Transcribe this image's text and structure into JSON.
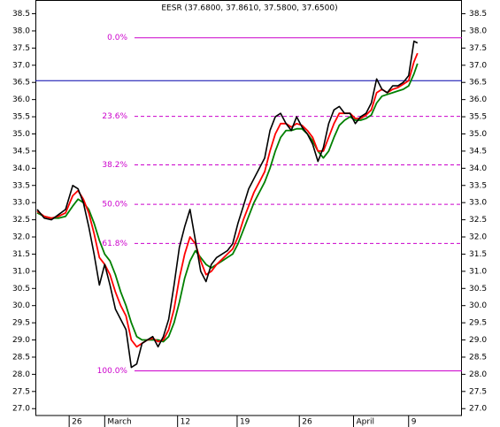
{
  "chart_data": {
    "type": "line",
    "title": "EESR (37.6800, 37.8610, 37.5800, 37.6500)",
    "x": [
      0.5,
      2.5,
      4.5,
      6.5,
      8.5,
      10.5,
      12,
      13.5,
      15,
      16.5,
      18,
      19.5,
      21,
      22.5,
      24,
      25.5,
      27,
      28.5,
      30,
      31.5,
      33,
      34.5,
      36,
      37.5,
      39,
      40.5,
      42,
      43.5,
      45,
      46.5,
      48,
      49.5,
      51,
      52.5,
      54,
      55.5,
      57,
      58.5,
      60,
      61.5,
      63,
      64.5,
      66,
      67.5,
      69,
      70.5,
      72,
      73.5,
      75,
      76.5,
      78,
      79.5,
      81,
      82.5,
      84,
      85.5,
      87,
      88.5,
      90,
      91.5,
      93,
      94.5,
      96,
      97.5,
      99,
      100.5,
      102,
      103.5,
      105,
      106.5,
      107.5
    ],
    "series": [
      {
        "color": "#000000",
        "values": [
          32.8,
          32.55,
          32.5,
          32.65,
          32.8,
          33.5,
          33.4,
          33.0,
          32.3,
          31.5,
          30.6,
          31.2,
          30.6,
          29.9,
          29.6,
          29.3,
          28.2,
          28.3,
          28.9,
          29.0,
          29.1,
          28.8,
          29.1,
          29.6,
          30.6,
          31.7,
          32.3,
          32.8,
          31.9,
          31.0,
          30.7,
          31.2,
          31.4,
          31.5,
          31.6,
          31.8,
          32.4,
          32.9,
          33.4,
          33.7,
          34.0,
          34.3,
          35.1,
          35.5,
          35.6,
          35.3,
          35.1,
          35.5,
          35.2,
          35.0,
          34.7,
          34.2,
          34.6,
          35.3,
          35.7,
          35.8,
          35.6,
          35.6,
          35.3,
          35.5,
          35.6,
          35.9,
          36.6,
          36.3,
          36.2,
          36.4,
          36.4,
          36.5,
          36.7,
          37.7,
          37.65
        ]
      },
      {
        "color": "#ff0000",
        "values": [
          32.75,
          32.6,
          32.55,
          32.6,
          32.7,
          33.2,
          33.35,
          33.1,
          32.7,
          32.1,
          31.4,
          31.2,
          30.9,
          30.4,
          30.0,
          29.7,
          29.0,
          28.8,
          28.9,
          29.0,
          29.05,
          28.95,
          29.0,
          29.3,
          29.9,
          30.8,
          31.5,
          32.0,
          31.8,
          31.3,
          30.9,
          31.0,
          31.2,
          31.35,
          31.5,
          31.65,
          32.0,
          32.5,
          32.9,
          33.3,
          33.6,
          33.9,
          34.5,
          35.0,
          35.3,
          35.3,
          35.2,
          35.3,
          35.25,
          35.1,
          34.9,
          34.5,
          34.5,
          34.9,
          35.3,
          35.6,
          35.6,
          35.6,
          35.45,
          35.45,
          35.55,
          35.7,
          36.2,
          36.3,
          36.2,
          36.3,
          36.35,
          36.45,
          36.55,
          37.1,
          37.35
        ]
      },
      {
        "color": "#008000",
        "values": [
          32.7,
          32.6,
          32.55,
          32.55,
          32.6,
          32.9,
          33.1,
          33.0,
          32.8,
          32.4,
          31.9,
          31.5,
          31.3,
          30.9,
          30.4,
          30.0,
          29.5,
          29.1,
          29.0,
          29.0,
          29.0,
          29.0,
          28.95,
          29.1,
          29.5,
          30.1,
          30.8,
          31.3,
          31.6,
          31.4,
          31.2,
          31.1,
          31.2,
          31.3,
          31.4,
          31.5,
          31.8,
          32.2,
          32.6,
          33.0,
          33.3,
          33.6,
          34.0,
          34.5,
          34.9,
          35.1,
          35.1,
          35.15,
          35.15,
          35.0,
          34.8,
          34.5,
          34.3,
          34.5,
          34.9,
          35.25,
          35.4,
          35.5,
          35.4,
          35.4,
          35.45,
          35.55,
          35.9,
          36.1,
          36.15,
          36.2,
          36.25,
          36.3,
          36.4,
          36.75,
          37.05
        ]
      }
    ],
    "fib_color": "#cc00cc",
    "fib_levels": [
      {
        "label": "0.0%",
        "value": 37.8,
        "style": "solid"
      },
      {
        "label": "23.6%",
        "value": 35.51,
        "style": "dashed"
      },
      {
        "label": "38.2%",
        "value": 34.1,
        "style": "dashed"
      },
      {
        "label": "50.0%",
        "value": 32.95,
        "style": "dashed"
      },
      {
        "label": "61.8%",
        "value": 31.81,
        "style": "dashed"
      },
      {
        "label": "100.0%",
        "value": 28.1,
        "style": "solid"
      }
    ],
    "hline": {
      "value": 36.55,
      "color": "#0000aa"
    },
    "xlim": [
      0,
      120
    ],
    "xticks": [
      {
        "value": 9.5,
        "label": "26"
      },
      {
        "value": 19.5,
        "label": "March"
      },
      {
        "value": 40,
        "label": "12"
      },
      {
        "value": 56.75,
        "label": "19"
      },
      {
        "value": 74.25,
        "label": "26"
      },
      {
        "value": 89.5,
        "label": "April"
      },
      {
        "value": 105,
        "label": "9"
      }
    ],
    "ylim": [
      26.8,
      38.9
    ],
    "yticks": [
      {
        "value": 27,
        "label": "27.0"
      },
      27.5,
      {
        "value": 28,
        "label": "28.0"
      },
      28.5,
      {
        "value": 29,
        "label": "29.0"
      },
      29.5,
      {
        "value": 30,
        "label": "30.0"
      },
      30.5,
      {
        "value": 31,
        "label": "31.0"
      },
      31.5,
      {
        "value": 32,
        "label": "32.0"
      },
      32.5,
      {
        "value": 33,
        "label": "33.0"
      },
      33.5,
      {
        "value": 34,
        "label": "34.0"
      },
      34.5,
      {
        "value": 35,
        "label": "35.0"
      },
      35.5,
      {
        "value": 36,
        "label": "36.0"
      },
      36.5,
      {
        "value": 37,
        "label": "37.0"
      },
      37.5,
      {
        "value": 38,
        "label": "38.0"
      },
      38.5
    ]
  }
}
